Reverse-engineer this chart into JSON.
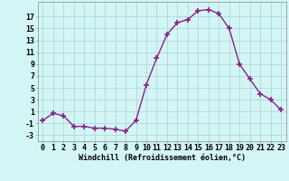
{
  "x": [
    0,
    1,
    2,
    3,
    4,
    5,
    6,
    7,
    8,
    9,
    10,
    11,
    12,
    13,
    14,
    15,
    16,
    17,
    18,
    19,
    20,
    21,
    22,
    23
  ],
  "y": [
    -0.5,
    0.7,
    0.3,
    -1.5,
    -1.5,
    -1.8,
    -1.8,
    -2.0,
    -2.3,
    -0.5,
    5.5,
    10.0,
    14.0,
    16.0,
    16.5,
    18.0,
    18.2,
    17.5,
    15.0,
    9.0,
    6.5,
    4.0,
    3.0,
    1.3
  ],
  "line_color": "#882288",
  "marker": "+",
  "markersize": 4,
  "markeredgewidth": 1.2,
  "bg_color": "#d4f5f5",
  "grid_color": "#b0d8d8",
  "xlabel": "Windchill (Refroidissement éolien,°C)",
  "yticks": [
    -3,
    -1,
    1,
    3,
    5,
    7,
    9,
    11,
    13,
    15,
    17
  ],
  "xlim": [
    -0.5,
    23.5
  ],
  "ylim": [
    -4.0,
    19.5
  ],
  "xlabel_fontsize": 6,
  "tick_fontsize": 6,
  "linewidth": 1.0
}
